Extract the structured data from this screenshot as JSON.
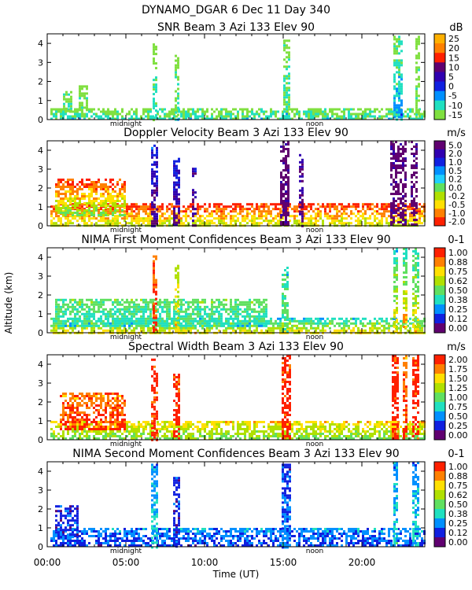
{
  "figure": {
    "header": "DYNAMO_DGAR    6 Dec 11 Day 340",
    "xlabel": "Time (UT)",
    "ylabel": "Altitude (km)",
    "x_ticks": [
      "00:00",
      "05:00",
      "10:00",
      "15:00",
      "20:00"
    ],
    "midnight_label": "midnight",
    "noon_label": "noon"
  },
  "chart_data": [
    {
      "type": "heatmap",
      "title": "SNR Beam 3 Azi 133 Elev 90",
      "units": "dB",
      "xlim_hours": [
        0,
        24
      ],
      "ylim_km": [
        0,
        4.5
      ],
      "y_ticks": [
        "0",
        "1",
        "2",
        "3",
        "4"
      ],
      "colorbar_labels": [
        "25",
        "20",
        "15",
        "10",
        "5",
        "0",
        "-5",
        "-10",
        "-15"
      ],
      "colorbar_colors": [
        "#ffb000",
        "#ff8000",
        "#ff2000",
        "#600070",
        "#3000b0",
        "#1020e0",
        "#0090ff",
        "#20e0c0",
        "#80e040"
      ],
      "typical_color_indices": [
        8,
        8,
        8,
        7,
        7,
        6
      ],
      "columns": [
        {
          "x": [
            0.2,
            24
          ],
          "y": [
            0,
            0.6
          ],
          "c": [
            7,
            8
          ]
        },
        {
          "x": [
            1.0,
            1.5
          ],
          "y": [
            0.4,
            1.5
          ],
          "c": [
            8,
            8
          ]
        },
        {
          "x": [
            2.0,
            2.5
          ],
          "y": [
            0.5,
            1.8
          ],
          "c": [
            8,
            8
          ]
        },
        {
          "x": [
            6.7,
            6.9
          ],
          "y": [
            0,
            4.0
          ],
          "c": [
            7,
            8
          ]
        },
        {
          "x": [
            8.1,
            8.3
          ],
          "y": [
            0,
            3.4
          ],
          "c": [
            7,
            8
          ]
        },
        {
          "x": [
            15.0,
            15.3
          ],
          "y": [
            0,
            4.2
          ],
          "c": [
            7,
            8
          ]
        },
        {
          "x": [
            22.0,
            22.5
          ],
          "y": [
            0,
            4.4
          ],
          "c": [
            6,
            8
          ]
        },
        {
          "x": [
            23.4,
            23.6
          ],
          "y": [
            0,
            4.4
          ],
          "c": [
            8,
            8
          ]
        }
      ]
    },
    {
      "type": "heatmap",
      "title": "Doppler Velocity Beam 3 Azi 133 Elev 90",
      "units": "m/s",
      "xlim_hours": [
        0,
        24
      ],
      "ylim_km": [
        0,
        4.5
      ],
      "y_ticks": [
        "0",
        "1",
        "2",
        "3",
        "4"
      ],
      "colorbar_labels": [
        "5.0",
        "2.0",
        "1.0",
        "0.5",
        "0.2",
        "0.0",
        "-0.2",
        "-0.5",
        "-1.0",
        "-2.0"
      ],
      "colorbar_colors": [
        "#600070",
        "#3000b0",
        "#1020e0",
        "#0090ff",
        "#20d0ff",
        "#60e060",
        "#b0e000",
        "#ffe000",
        "#ff8000",
        "#ff2000"
      ],
      "columns": [
        {
          "x": [
            0.2,
            24
          ],
          "y": [
            0,
            1.2
          ],
          "c": [
            6,
            9
          ]
        },
        {
          "x": [
            0.5,
            5.0
          ],
          "y": [
            0.5,
            2.5
          ],
          "c": [
            5,
            9
          ]
        },
        {
          "x": [
            6.6,
            6.9
          ],
          "y": [
            0,
            4.3
          ],
          "c": [
            0,
            2
          ]
        },
        {
          "x": [
            8.0,
            8.4
          ],
          "y": [
            0,
            3.6
          ],
          "c": [
            0,
            2
          ]
        },
        {
          "x": [
            9.2,
            9.4
          ],
          "y": [
            0,
            3.2
          ],
          "c": [
            0,
            1
          ]
        },
        {
          "x": [
            14.8,
            15.3
          ],
          "y": [
            0,
            4.5
          ],
          "c": [
            0,
            0
          ]
        },
        {
          "x": [
            16.0,
            16.3
          ],
          "y": [
            0,
            3.8
          ],
          "c": [
            0,
            1
          ]
        },
        {
          "x": [
            21.8,
            22.8
          ],
          "y": [
            0,
            4.5
          ],
          "c": [
            0,
            0
          ]
        },
        {
          "x": [
            23.1,
            23.5
          ],
          "y": [
            0,
            4.5
          ],
          "c": [
            0,
            0
          ]
        }
      ]
    },
    {
      "type": "heatmap",
      "title": "NIMA First Moment Confidences Beam 3 Azi 133 Elev 90",
      "units": "0-1",
      "xlim_hours": [
        0,
        24
      ],
      "ylim_km": [
        0,
        4.5
      ],
      "y_ticks": [
        "0",
        "1",
        "2",
        "3",
        "4"
      ],
      "colorbar_labels": [
        "1.00",
        "0.88",
        "0.75",
        "0.62",
        "0.50",
        "0.38",
        "0.25",
        "0.12",
        "0.00"
      ],
      "colorbar_colors": [
        "#ff2000",
        "#ff8000",
        "#ffe000",
        "#b0e000",
        "#60e060",
        "#20e0c0",
        "#0090ff",
        "#1020e0",
        "#600070"
      ],
      "columns": [
        {
          "x": [
            0.2,
            24
          ],
          "y": [
            0,
            0.8
          ],
          "c": [
            2,
            5
          ]
        },
        {
          "x": [
            0.5,
            14
          ],
          "y": [
            0.4,
            1.8
          ],
          "c": [
            5,
            4
          ]
        },
        {
          "x": [
            6.7,
            6.9
          ],
          "y": [
            0,
            4.1
          ],
          "c": [
            0,
            1
          ]
        },
        {
          "x": [
            8.1,
            8.3
          ],
          "y": [
            0,
            3.6
          ],
          "c": [
            2,
            3
          ]
        },
        {
          "x": [
            14.9,
            15.3
          ],
          "y": [
            0,
            3.5
          ],
          "c": [
            4,
            5
          ]
        },
        {
          "x": [
            22.0,
            22.3
          ],
          "y": [
            0,
            4.5
          ],
          "c": [
            2,
            5
          ]
        },
        {
          "x": [
            22.6,
            22.8
          ],
          "y": [
            0,
            4.5
          ],
          "c": [
            1,
            5
          ]
        },
        {
          "x": [
            23.2,
            23.6
          ],
          "y": [
            0,
            4.5
          ],
          "c": [
            2,
            5
          ]
        }
      ]
    },
    {
      "type": "heatmap",
      "title": "Spectral Width Beam 3 Azi 133 Elev 90",
      "units": "m/s",
      "xlim_hours": [
        0,
        24
      ],
      "ylim_km": [
        0,
        4.5
      ],
      "y_ticks": [
        "0",
        "1",
        "2",
        "3",
        "4"
      ],
      "colorbar_labels": [
        "2.00",
        "1.75",
        "1.50",
        "1.25",
        "1.00",
        "0.75",
        "0.50",
        "0.25",
        "0.00"
      ],
      "colorbar_colors": [
        "#ff2000",
        "#ff8000",
        "#ffe000",
        "#b0e000",
        "#60e060",
        "#20e0c0",
        "#0090ff",
        "#1020e0",
        "#600070"
      ],
      "columns": [
        {
          "x": [
            0.2,
            24
          ],
          "y": [
            0,
            1.0
          ],
          "c": [
            4,
            2
          ]
        },
        {
          "x": [
            0.8,
            5.0
          ],
          "y": [
            0.5,
            2.5
          ],
          "c": [
            0,
            1
          ]
        },
        {
          "x": [
            6.6,
            6.9
          ],
          "y": [
            0,
            4.3
          ],
          "c": [
            0,
            0
          ]
        },
        {
          "x": [
            8.0,
            8.3
          ],
          "y": [
            0,
            3.5
          ],
          "c": [
            0,
            0
          ]
        },
        {
          "x": [
            14.9,
            15.4
          ],
          "y": [
            0,
            4.5
          ],
          "c": [
            0,
            0
          ]
        },
        {
          "x": [
            21.9,
            22.3
          ],
          "y": [
            0,
            4.5
          ],
          "c": [
            0,
            0
          ]
        },
        {
          "x": [
            22.6,
            22.9
          ],
          "y": [
            0,
            4.5
          ],
          "c": [
            0,
            1
          ]
        },
        {
          "x": [
            23.2,
            23.6
          ],
          "y": [
            0,
            4.5
          ],
          "c": [
            0,
            0
          ]
        }
      ]
    },
    {
      "type": "heatmap",
      "title": "NIMA Second Moment Confidences Beam 3 Azi 133 Elev 90",
      "units": "0-1",
      "xlim_hours": [
        0,
        24
      ],
      "ylim_km": [
        0,
        4.5
      ],
      "y_ticks": [
        "0",
        "1",
        "2",
        "3",
        "4"
      ],
      "colorbar_labels": [
        "1.00",
        "0.88",
        "0.75",
        "0.62",
        "0.50",
        "0.38",
        "0.25",
        "0.12",
        "0.00"
      ],
      "colorbar_colors": [
        "#ff2000",
        "#ff8000",
        "#ffe000",
        "#b0e000",
        "#60e060",
        "#20e0c0",
        "#0090ff",
        "#1020e0",
        "#600070"
      ],
      "columns": [
        {
          "x": [
            0.2,
            24
          ],
          "y": [
            0,
            1.0
          ],
          "c": [
            7,
            6
          ]
        },
        {
          "x": [
            0.5,
            2.0
          ],
          "y": [
            0.5,
            2.2
          ],
          "c": [
            7,
            7
          ]
        },
        {
          "x": [
            6.6,
            6.9
          ],
          "y": [
            0,
            4.4
          ],
          "c": [
            5,
            6
          ]
        },
        {
          "x": [
            8.0,
            8.3
          ],
          "y": [
            0,
            3.7
          ],
          "c": [
            7,
            7
          ]
        },
        {
          "x": [
            14.9,
            15.4
          ],
          "y": [
            0,
            4.4
          ],
          "c": [
            6,
            7
          ]
        },
        {
          "x": [
            22.0,
            22.3
          ],
          "y": [
            0,
            4.5
          ],
          "c": [
            5,
            6
          ]
        },
        {
          "x": [
            23.2,
            23.6
          ],
          "y": [
            0,
            4.5
          ],
          "c": [
            5,
            6
          ]
        }
      ]
    }
  ]
}
